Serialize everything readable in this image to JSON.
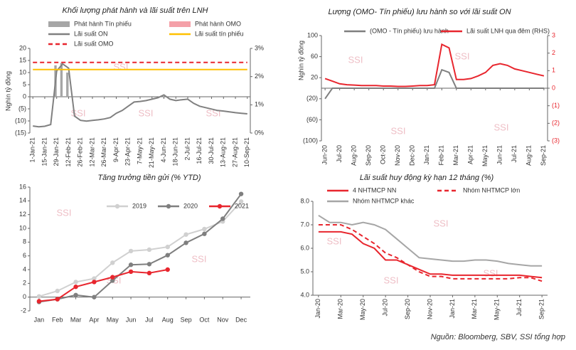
{
  "watermark": "SSI",
  "source": "Nguồn:  Bloomberg, SBV, SSI tổng hợp",
  "chart_data": [
    {
      "type": "combo",
      "title": "Khối lượng phát hành và lãi suất trên LNH",
      "ylabel": "Nghìn tỷ đồng",
      "categories": [
        "1-Jan-21",
        null,
        "15-Jan-21",
        null,
        "29-Jan-21",
        null,
        "12-Feb-21",
        null,
        "26-Feb-21",
        null,
        "12-Mar-21",
        null,
        "26-Mar-21",
        null,
        "9-Apr-21",
        null,
        "23-Apr-21",
        null,
        "7-May-21",
        null,
        "21-May-21",
        null,
        "4-Jun-21",
        null,
        "18-Jun-21",
        null,
        "2-Jul-21",
        null,
        "16-Jul-21",
        null,
        "30-Jul-21",
        null,
        "13-Aug-21",
        null,
        "27-Aug-21",
        null,
        "10-Sep-21"
      ],
      "series": [
        {
          "name": "Phát hành Tín phiếu",
          "type": "bar",
          "color": "#a6a6a6",
          "values": [
            0,
            0,
            0,
            0,
            13,
            14,
            10,
            0,
            0,
            0,
            0,
            0,
            0,
            0,
            0,
            0,
            0,
            0,
            0,
            0,
            0,
            0,
            0,
            0,
            0,
            0,
            0,
            0,
            0,
            0,
            0,
            0,
            0,
            0,
            0,
            0,
            0
          ]
        },
        {
          "name": "Phát hành OMO",
          "type": "bar",
          "color": "#f4a0a8",
          "values": [
            0,
            0,
            0,
            0,
            0,
            0,
            0,
            0,
            0,
            0,
            0,
            0,
            0,
            0,
            0,
            0,
            0,
            0,
            0,
            0,
            0,
            0,
            0,
            0,
            0,
            0,
            0,
            0,
            0,
            0,
            0,
            0,
            0,
            0,
            0,
            0,
            0
          ]
        },
        {
          "name": "Lãi suất ON",
          "type": "line",
          "axis": "y2",
          "color": "#808080",
          "values": [
            0.25,
            0.22,
            0.24,
            0.3,
            2.2,
            2.45,
            2.3,
            0.6,
            0.45,
            0.42,
            0.45,
            0.47,
            0.5,
            0.55,
            0.7,
            0.8,
            0.95,
            1.1,
            1.12,
            1.15,
            1.2,
            1.25,
            1.35,
            1.2,
            1.15,
            1.18,
            1.2,
            1.05,
            0.95,
            0.9,
            0.85,
            0.8,
            0.78,
            0.75,
            0.72,
            0.7,
            0.68
          ]
        },
        {
          "name": "Lãi suất tín phiếu",
          "type": "line",
          "axis": "y2",
          "color": "#ffc000",
          "values": [
            2.25,
            2.25,
            2.25,
            2.25,
            2.25,
            2.25,
            2.25,
            2.25,
            2.25,
            2.25,
            2.25,
            2.25,
            2.25,
            2.25,
            2.25,
            2.25,
            2.25,
            2.25,
            2.25,
            2.25,
            2.25,
            2.25,
            2.25,
            2.25,
            2.25,
            2.25,
            2.25,
            2.25,
            2.25,
            2.25,
            2.25,
            2.25,
            2.25,
            2.25,
            2.25,
            2.25,
            2.25
          ]
        },
        {
          "name": "Lãi suất OMO",
          "type": "line",
          "axis": "y2",
          "dash": true,
          "color": "#e8262e",
          "values": [
            2.5,
            2.5,
            2.5,
            2.5,
            2.5,
            2.5,
            2.5,
            2.5,
            2.5,
            2.5,
            2.5,
            2.5,
            2.5,
            2.5,
            2.5,
            2.5,
            2.5,
            2.5,
            2.5,
            2.5,
            2.5,
            2.5,
            2.5,
            2.5,
            2.5,
            2.5,
            2.5,
            2.5,
            2.5,
            2.5,
            2.5,
            2.5,
            2.5,
            2.5,
            2.5,
            2.5,
            2.5
          ]
        }
      ],
      "ylim": [
        -15,
        20
      ],
      "yticks": [
        20,
        15,
        10,
        5,
        0,
        {
          "value": -5,
          "label": "(5)"
        },
        {
          "value": -10,
          "label": "(10)"
        },
        {
          "value": -15,
          "label": "(15)"
        }
      ],
      "y2lim": [
        0,
        3
      ],
      "y2ticks": [
        {
          "value": 3,
          "label": "3%"
        },
        {
          "value": 2,
          "label": "2%"
        },
        {
          "value": 1,
          "label": "1%"
        },
        {
          "value": 0,
          "label": "0%"
        }
      ]
    },
    {
      "type": "line",
      "title": "Lượng (OMO- Tín phiếu) lưu hành so với lãi suất ON",
      "ylabel": "Nghìn tỷ đồng",
      "categories": [
        "Jun-20",
        null,
        "Jul-20",
        null,
        "Aug-20",
        null,
        "Sep-20",
        null,
        "Oct-20",
        null,
        "Nov-20",
        null,
        "Dec-20",
        null,
        "Jan-21",
        null,
        "Feb-21",
        null,
        "Mar-21",
        null,
        "Apr-21",
        null,
        "May-21",
        null,
        "Jun-21",
        null,
        "Jul-21",
        null,
        "Aug-21",
        null,
        "Sep-21"
      ],
      "series": [
        {
          "name": "(OMO - Tín phiếu) lưu hành",
          "color": "#7f7f7f",
          "values": [
            -20,
            0,
            0,
            0,
            0,
            0,
            0,
            0,
            0,
            0,
            0,
            0,
            0,
            0,
            0,
            0,
            35,
            30,
            0,
            0,
            0,
            0,
            0,
            0,
            0,
            0,
            0,
            0,
            0,
            0,
            0
          ]
        },
        {
          "name": "Lãi suất LNH qua đêm (RHS)",
          "axis": "y2",
          "color": "#e8262e",
          "values": [
            0.55,
            0.4,
            0.25,
            0.2,
            0.18,
            0.15,
            0.15,
            0.15,
            0.12,
            0.12,
            0.1,
            0.1,
            0.12,
            0.15,
            0.15,
            0.2,
            2.5,
            2.3,
            0.5,
            0.5,
            0.55,
            0.7,
            0.9,
            1.3,
            1.4,
            1.3,
            1.1,
            1.0,
            0.9,
            0.8,
            0.7
          ]
        }
      ],
      "ylim": [
        -100,
        100
      ],
      "yticks": [
        100,
        60,
        20,
        {
          "value": -20,
          "label": "(20)"
        },
        {
          "value": -60,
          "label": "(60)"
        },
        {
          "value": -100,
          "label": "(100)"
        }
      ],
      "y2lim": [
        -3,
        3
      ],
      "y2ticks": [
        3,
        2,
        1,
        0,
        {
          "value": -1,
          "label": "(1)"
        },
        {
          "value": -2,
          "label": "(2)"
        },
        {
          "value": -3,
          "label": "(3)"
        }
      ],
      "y2color": "#e8262e"
    },
    {
      "type": "line",
      "title": "Tăng trưởng tiền gửi (% YTD)",
      "markers": true,
      "categories": [
        "Jan",
        "Feb",
        "Mar",
        "Apr",
        "May",
        "Jun",
        "Jul",
        "Aug",
        "Sep",
        "Oct",
        "Nov",
        "Dec"
      ],
      "series": [
        {
          "name": "2019",
          "color": "#d0d0d0",
          "values": [
            0.1,
            0.9,
            2.2,
            2.7,
            5.0,
            6.7,
            6.9,
            7.3,
            9.1,
            9.9,
            11.0,
            13.9
          ]
        },
        {
          "name": "2020",
          "color": "#7f7f7f",
          "values": [
            -0.7,
            -0.3,
            0.3,
            0.0,
            2.4,
            4.7,
            4.8,
            6.1,
            7.9,
            9.2,
            11.4,
            15.0
          ]
        },
        {
          "name": "2021",
          "color": "#e8262e",
          "values": [
            -0.6,
            -0.3,
            1.5,
            2.2,
            2.9,
            3.7,
            3.5,
            4.0,
            null,
            null,
            null,
            null
          ]
        }
      ],
      "ylim": [
        -2,
        16
      ],
      "yticks": [
        -2,
        0,
        2,
        4,
        6,
        8,
        10,
        12,
        14,
        16
      ]
    },
    {
      "type": "line",
      "title": "Lãi suất huy động kỳ hạn 12 tháng (%)",
      "categories": [
        "Jan-20",
        null,
        "Mar-20",
        null,
        "May-20",
        null,
        "Jul-20",
        null,
        "Sep-20",
        null,
        "Nov-20",
        null,
        "Jan-21",
        null,
        "Mar-21",
        null,
        "May-21",
        null,
        "Jul-21",
        null,
        "Sep-21"
      ],
      "series": [
        {
          "name": "4 NHTMCP NN",
          "color": "#e8262e",
          "values": [
            6.7,
            6.7,
            6.7,
            6.6,
            6.2,
            6.0,
            5.5,
            5.5,
            5.3,
            5.1,
            4.9,
            4.9,
            4.85,
            4.85,
            4.85,
            4.85,
            4.85,
            4.85,
            4.85,
            4.8,
            4.75
          ]
        },
        {
          "name": "Nhóm NHTMCP lớn",
          "color": "#e8262e",
          "dash": true,
          "values": [
            7.0,
            7.0,
            7.0,
            6.8,
            6.5,
            6.2,
            5.8,
            5.6,
            5.3,
            5.0,
            4.8,
            4.8,
            4.7,
            4.7,
            4.7,
            4.7,
            4.7,
            4.7,
            4.75,
            4.75,
            4.6
          ]
        },
        {
          "name": "Nhóm NHTMCP khác",
          "color": "#a6a6a6",
          "values": [
            7.4,
            7.1,
            7.1,
            7.0,
            7.1,
            7.0,
            6.8,
            6.4,
            6.0,
            5.6,
            5.55,
            5.5,
            5.45,
            5.45,
            5.5,
            5.5,
            5.45,
            5.35,
            5.3,
            5.25,
            5.25
          ]
        }
      ],
      "ylim": [
        4,
        8
      ],
      "yticks": [
        {
          "value": 4,
          "label": "4.0"
        },
        {
          "value": 5,
          "label": "5.0"
        },
        {
          "value": 6,
          "label": "6.0"
        },
        {
          "value": 7,
          "label": "7.0"
        },
        {
          "value": 8,
          "label": "8.0"
        }
      ]
    }
  ]
}
